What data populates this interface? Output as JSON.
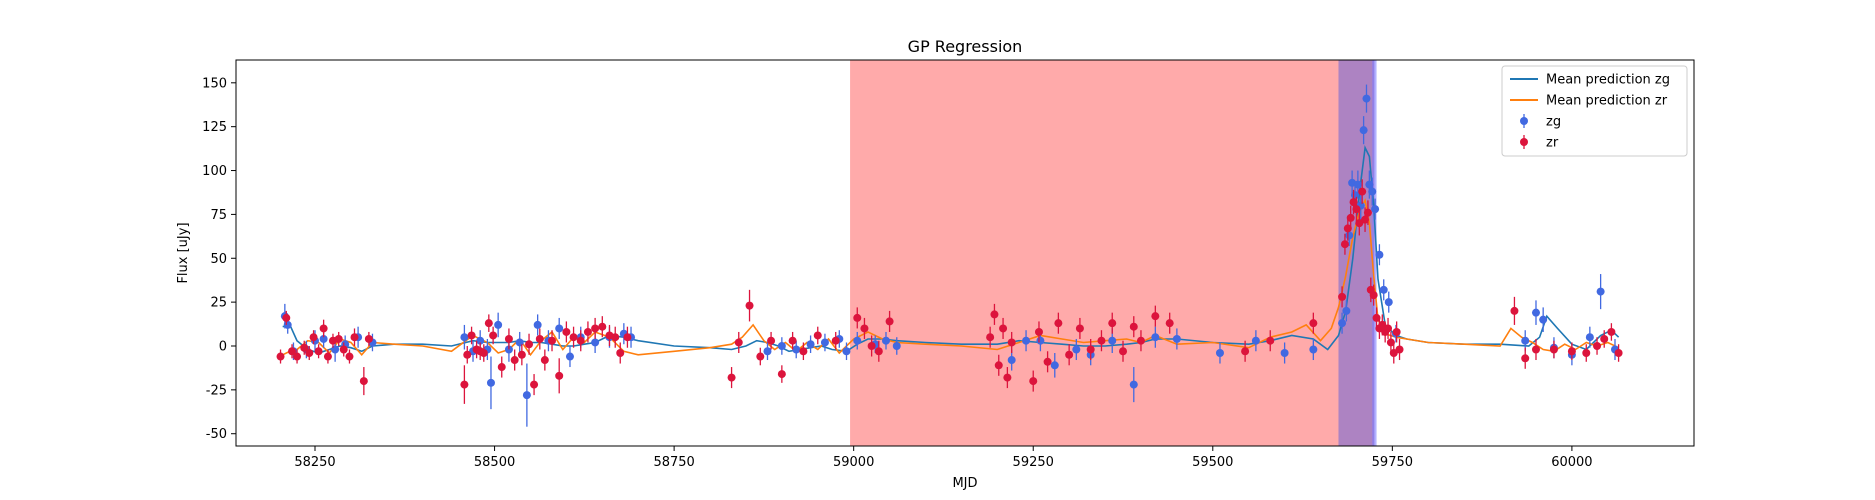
{
  "chart_data": {
    "type": "scatter",
    "title": "GP Regression",
    "xlabel": "MJD",
    "ylabel": "Flux [uJy]",
    "xlim": [
      58140,
      60170
    ],
    "ylim": [
      -57,
      163
    ],
    "xticks": [
      58250,
      58500,
      58750,
      59000,
      59250,
      59500,
      59750,
      60000
    ],
    "yticks": [
      -50,
      -25,
      0,
      25,
      50,
      75,
      100,
      125,
      150
    ],
    "grid": false,
    "legend_position": "top-right",
    "colors": {
      "zg_line": "#1f77b4",
      "zr_line": "#ff7f0e",
      "zg_points": "#4169e1",
      "zr_points": "#dc143c",
      "red_span": "#ff5555",
      "purple_span": "#8a4fa8",
      "blue_span": "#7f7fff"
    },
    "spans": [
      {
        "x0": 58995,
        "x1": 59675,
        "color": "#ff5555",
        "alpha": 0.5
      },
      {
        "x0": 59675,
        "x1": 59725,
        "color": "#8a4fa8",
        "alpha": 0.7
      },
      {
        "x0": 59722,
        "x1": 59728,
        "color": "#7f7fff",
        "alpha": 0.6
      }
    ],
    "series": [
      {
        "name": "Mean prediction zg",
        "kind": "line",
        "color": "#1f77b4",
        "x": [
          58205,
          58215,
          58225,
          58240,
          58255,
          58270,
          58285,
          58300,
          58315,
          58330,
          58360,
          58400,
          58440,
          58470,
          58490,
          58505,
          58520,
          58535,
          58550,
          58565,
          58580,
          58595,
          58610,
          58625,
          58640,
          58660,
          58680,
          58700,
          58750,
          58800,
          58830,
          58850,
          58865,
          58880,
          58895,
          58910,
          58925,
          58940,
          58955,
          58970,
          58990,
          59005,
          59020,
          59040,
          59060,
          59100,
          59150,
          59200,
          59230,
          59260,
          59290,
          59320,
          59350,
          59380,
          59400,
          59420,
          59450,
          59500,
          59550,
          59580,
          59610,
          59640,
          59660,
          59675,
          59685,
          59695,
          59705,
          59712,
          59718,
          59724,
          59730,
          59740,
          59755,
          59770,
          59800,
          59850,
          59900,
          59940,
          59955,
          59965,
          59980,
          60000,
          60020,
          60040,
          60055,
          60065
        ],
        "y": [
          11,
          12,
          3,
          -2,
          -4,
          -2,
          0,
          -1,
          -3,
          0,
          1,
          1,
          0,
          3,
          2,
          2,
          2,
          3,
          2,
          2,
          1,
          0,
          0,
          1,
          2,
          6,
          5,
          3,
          0,
          -1,
          -2,
          0,
          3,
          2,
          0,
          -3,
          -2,
          -1,
          0,
          -2,
          -3,
          1,
          4,
          4,
          3,
          2,
          1,
          1,
          3,
          2,
          1,
          0,
          0,
          1,
          2,
          4,
          4,
          2,
          1,
          3,
          6,
          4,
          -2,
          6,
          20,
          50,
          90,
          113,
          108,
          80,
          38,
          12,
          6,
          4,
          2,
          1,
          1,
          0,
          5,
          17,
          10,
          1,
          -2,
          6,
          9,
          5
        ]
      },
      {
        "name": "Mean prediction zr",
        "kind": "line",
        "color": "#ff7f0e",
        "x": [
          58205,
          58215,
          58225,
          58240,
          58255,
          58270,
          58285,
          58300,
          58315,
          58330,
          58360,
          58400,
          58440,
          58460,
          58470,
          58490,
          58505,
          58520,
          58535,
          58550,
          58565,
          58580,
          58595,
          58610,
          58625,
          58640,
          58660,
          58680,
          58700,
          58750,
          58800,
          58830,
          58845,
          58860,
          58875,
          58890,
          58905,
          58920,
          58935,
          58950,
          58965,
          58980,
          59000,
          59020,
          59040,
          59060,
          59100,
          59150,
          59200,
          59230,
          59260,
          59290,
          59320,
          59350,
          59380,
          59400,
          59420,
          59450,
          59500,
          59550,
          59580,
          59610,
          59630,
          59650,
          59665,
          59675,
          59685,
          59695,
          59705,
          59712,
          59718,
          59724,
          59730,
          59740,
          59755,
          59770,
          59800,
          59850,
          59900,
          59915,
          59930,
          59945,
          59960,
          59975,
          59990,
          60005,
          60020,
          60035,
          60050,
          60065
        ],
        "y": [
          -5,
          -3,
          -2,
          3,
          2,
          -4,
          4,
          2,
          -5,
          2,
          1,
          0,
          -3,
          3,
          6,
          2,
          -4,
          -2,
          4,
          -5,
          3,
          8,
          -2,
          5,
          2,
          8,
          5,
          -3,
          -5,
          -3,
          -1,
          1,
          5,
          12,
          3,
          -2,
          2,
          -3,
          2,
          -2,
          4,
          -4,
          4,
          8,
          4,
          2,
          1,
          0,
          -2,
          2,
          6,
          4,
          2,
          3,
          4,
          2,
          6,
          1,
          2,
          -1,
          5,
          8,
          12,
          3,
          10,
          22,
          40,
          62,
          78,
          83,
          70,
          40,
          15,
          7,
          5,
          4,
          2,
          1,
          0,
          10,
          5,
          2,
          -2,
          -3,
          1,
          -2,
          2,
          0,
          2,
          -1
        ]
      },
      {
        "name": "zg",
        "kind": "points",
        "color": "#4169e1",
        "x": [
          58208,
          58212,
          58220,
          58238,
          58250,
          58262,
          58278,
          58292,
          58310,
          58330,
          58458,
          58470,
          58480,
          58490,
          58495,
          58505,
          58520,
          58535,
          58545,
          58560,
          58575,
          58590,
          58605,
          58620,
          58640,
          58660,
          58680,
          58690,
          58880,
          58900,
          58920,
          58940,
          58960,
          58980,
          58990,
          59005,
          59030,
          59045,
          59060,
          59220,
          59240,
          59260,
          59280,
          59310,
          59330,
          59360,
          59390,
          59420,
          59450,
          59510,
          59560,
          59600,
          59640,
          59680,
          59686,
          59690,
          59694,
          59698,
          59702,
          59706,
          59710,
          59714,
          59718,
          59722,
          59726,
          59732,
          59738,
          59745,
          59755,
          59935,
          59950,
          59960,
          59975,
          60000,
          60025,
          60040,
          60060
        ],
        "y": [
          17,
          12,
          -3,
          -2,
          3,
          4,
          -2,
          1,
          5,
          2,
          5,
          -3,
          3,
          -2,
          -21,
          12,
          -2,
          2,
          -28,
          12,
          3,
          10,
          -6,
          5,
          2,
          5,
          7,
          5,
          -3,
          0,
          -2,
          1,
          2,
          4,
          -3,
          3,
          1,
          3,
          0,
          -8,
          3,
          3,
          -11,
          -2,
          -5,
          3,
          -22,
          5,
          4,
          -4,
          3,
          -4,
          -2,
          13,
          20,
          63,
          93,
          86,
          92,
          80,
          123,
          141,
          92,
          88,
          78,
          52,
          32,
          25,
          7,
          3,
          19,
          15,
          -1,
          -5,
          5,
          31,
          -2
        ],
        "err": [
          7,
          5,
          5,
          5,
          6,
          5,
          7,
          5,
          6,
          5,
          7,
          6,
          6,
          6,
          15,
          7,
          7,
          6,
          18,
          6,
          6,
          6,
          6,
          6,
          6,
          6,
          6,
          6,
          5,
          5,
          5,
          5,
          5,
          5,
          5,
          5,
          5,
          5,
          5,
          6,
          6,
          6,
          7,
          6,
          6,
          7,
          10,
          6,
          6,
          6,
          6,
          6,
          6,
          6,
          6,
          6,
          7,
          7,
          8,
          8,
          8,
          8,
          8,
          8,
          6,
          6,
          6,
          6,
          5,
          6,
          7,
          7,
          6,
          6,
          6,
          10,
          6
        ]
      },
      {
        "name": "zr",
        "kind": "points",
        "color": "#dc143c",
        "x": [
          58202,
          58210,
          58218,
          58225,
          58235,
          58242,
          58248,
          58255,
          58262,
          58268,
          58275,
          58283,
          58290,
          58298,
          58305,
          58318,
          58325,
          58458,
          58462,
          58468,
          58475,
          58480,
          58485,
          58492,
          58498,
          58510,
          58520,
          58528,
          58538,
          58548,
          58555,
          58563,
          58570,
          58580,
          58590,
          58600,
          58610,
          58620,
          58630,
          58640,
          58650,
          58660,
          58668,
          58675,
          58685,
          58830,
          58840,
          58855,
          58870,
          58885,
          58900,
          58915,
          58930,
          58950,
          58975,
          59005,
          59015,
          59025,
          59035,
          59050,
          59190,
          59196,
          59202,
          59208,
          59214,
          59220,
          59250,
          59258,
          59270,
          59285,
          59300,
          59315,
          59330,
          59345,
          59360,
          59375,
          59390,
          59400,
          59420,
          59440,
          59545,
          59580,
          59640,
          59680,
          59684,
          59688,
          59692,
          59696,
          59700,
          59704,
          59708,
          59712,
          59716,
          59720,
          59724,
          59728,
          59732,
          59736,
          59740,
          59744,
          59748,
          59752,
          59756,
          59760,
          59920,
          59935,
          59950,
          59975,
          60000,
          60020,
          60035,
          60045,
          60055,
          60065
        ],
        "y": [
          -6,
          16,
          -3,
          -6,
          -1,
          -4,
          5,
          -3,
          10,
          -6,
          3,
          4,
          -2,
          -6,
          5,
          -20,
          4,
          -22,
          -5,
          6,
          -2,
          -3,
          -4,
          13,
          6,
          -12,
          4,
          -8,
          -5,
          1,
          -22,
          4,
          -8,
          3,
          -17,
          8,
          5,
          3,
          8,
          10,
          11,
          6,
          5,
          -4,
          5,
          -18,
          2,
          23,
          -6,
          3,
          -16,
          3,
          -3,
          6,
          3,
          16,
          10,
          0,
          -3,
          14,
          5,
          18,
          -11,
          10,
          -18,
          2,
          -20,
          8,
          -9,
          13,
          -5,
          10,
          -2,
          3,
          13,
          -3,
          11,
          3,
          17,
          13,
          -3,
          3,
          13,
          28,
          58,
          67,
          73,
          82,
          78,
          70,
          88,
          72,
          76,
          32,
          29,
          16,
          10,
          12,
          8,
          10,
          2,
          -4,
          8,
          -2,
          20,
          -7,
          -2,
          -2,
          -3,
          -4,
          0,
          4,
          8,
          -4
        ],
        "err": [
          4,
          4,
          4,
          4,
          4,
          4,
          4,
          4,
          5,
          4,
          4,
          4,
          4,
          4,
          5,
          8,
          4,
          11,
          5,
          5,
          5,
          5,
          5,
          5,
          5,
          6,
          6,
          6,
          6,
          6,
          6,
          6,
          6,
          6,
          10,
          6,
          6,
          6,
          6,
          6,
          6,
          6,
          6,
          6,
          6,
          6,
          6,
          9,
          5,
          5,
          5,
          5,
          5,
          5,
          5,
          6,
          6,
          6,
          6,
          6,
          6,
          6,
          6,
          6,
          6,
          6,
          6,
          6,
          6,
          6,
          6,
          6,
          6,
          6,
          6,
          6,
          6,
          6,
          6,
          6,
          6,
          6,
          6,
          6,
          6,
          7,
          7,
          7,
          7,
          7,
          7,
          7,
          7,
          7,
          6,
          6,
          6,
          6,
          6,
          6,
          6,
          6,
          6,
          6,
          8,
          6,
          6,
          5,
          5,
          5,
          5,
          5,
          5,
          5
        ]
      }
    ]
  }
}
